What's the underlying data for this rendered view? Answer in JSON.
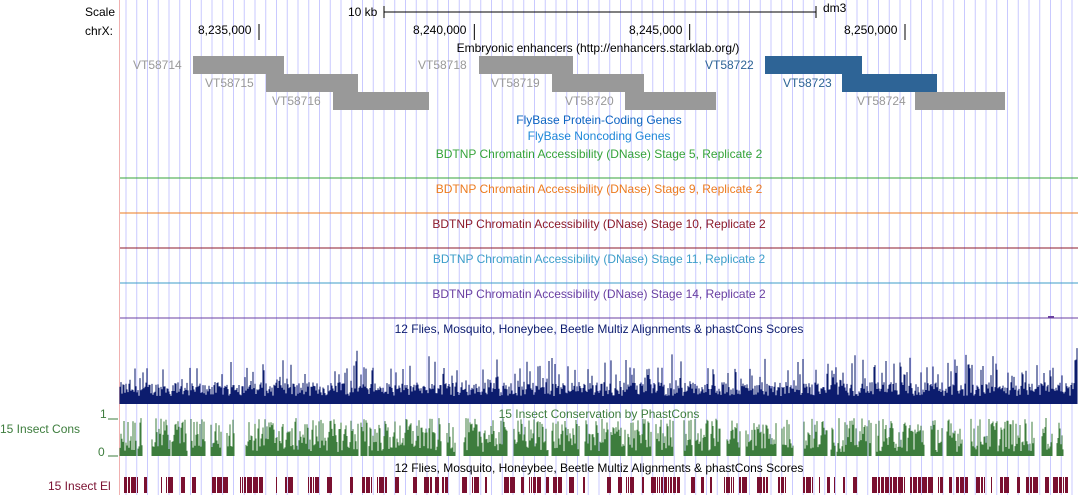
{
  "ruler": {
    "scale_label": "Scale",
    "chrom_label": "chrX:",
    "scale_bar_label": "10 kb",
    "assembly": "dm3",
    "ticks": [
      {
        "label": "8,235,000",
        "pos": 8235000
      },
      {
        "label": "8,240,000",
        "pos": 8240000
      },
      {
        "label": "8,245,000",
        "pos": 8245000
      },
      {
        "label": "8,250,000",
        "pos": 8250000
      }
    ]
  },
  "tracks": {
    "enhancers_title": "Embryonic enhancers (http://enhancers.starklab.org/)",
    "enhancers": [
      {
        "name": "VT58714",
        "highlighted": false
      },
      {
        "name": "VT58715",
        "highlighted": false
      },
      {
        "name": "VT58716",
        "highlighted": false
      },
      {
        "name": "VT58718",
        "highlighted": false
      },
      {
        "name": "VT58719",
        "highlighted": false
      },
      {
        "name": "VT58720",
        "highlighted": false
      },
      {
        "name": "VT58722",
        "highlighted": true
      },
      {
        "name": "VT58723",
        "highlighted": true
      },
      {
        "name": "VT58724",
        "highlighted": false
      }
    ],
    "flybase_coding": "FlyBase Protein-Coding Genes",
    "flybase_noncoding": "FlyBase Noncoding Genes",
    "dnase": [
      {
        "title": "BDTNP Chromatin Accessibility (DNase) Stage 5, Replicate 2",
        "color": "#35a33a"
      },
      {
        "title": "BDTNP Chromatin Accessibility (DNase) Stage 9, Replicate 2",
        "color": "#ec7b1f"
      },
      {
        "title": "BDTNP Chromatin Accessibility (DNase) Stage 10, Replicate 2",
        "color": "#8b1a2b"
      },
      {
        "title": "BDTNP Chromatin Accessibility (DNase) Stage 11, Replicate 2",
        "color": "#3d9ec9"
      },
      {
        "title": "BDTNP Chromatin Accessibility (DNase) Stage 14, Replicate 2",
        "color": "#6a3fa0"
      }
    ],
    "multiz_title": "12 Flies, Mosquito, Honeybee, Beetle Multiz Alignments & phastCons Scores",
    "insect_cons_title": "15 Insect Conservation by PhastCons",
    "insect_cons_label": "15 Insect Cons",
    "insect_cons_max": "1",
    "insect_cons_min": "0",
    "insect_el_title": "12 Flies, Mosquito, Honeybee, Beetle Multiz Alignments & phastCons Scores",
    "insect_el_label": "15 Insect El"
  },
  "colors": {
    "gray_feature": "#999999",
    "blue_feature": "#2e6496",
    "gray_label": "#999999",
    "blue_label": "#2e6496",
    "flybase_coding": "#0c64c0",
    "flybase_noncoding": "#1e88d8",
    "multiz": "#0c1c6e",
    "cons": "#3d7d3d",
    "elements": "#7a1030",
    "grid": "#c9c9ff",
    "left_border": "#f0b0b0"
  }
}
